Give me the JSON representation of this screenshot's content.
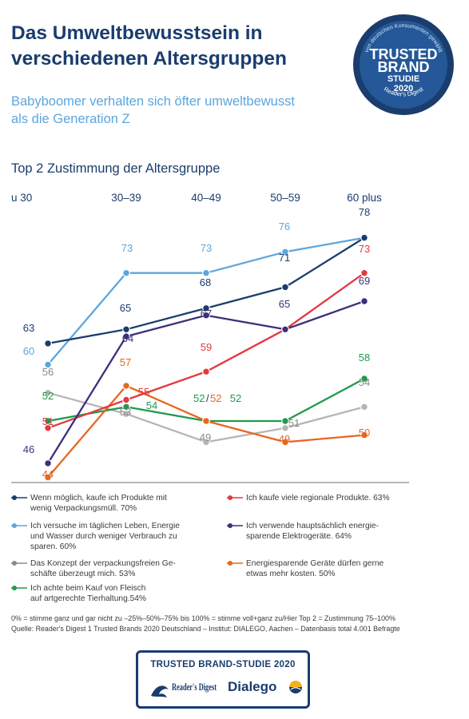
{
  "title_lines": [
    "Das Umweltbewusstsein in",
    "verschiedenen Altersgruppen"
  ],
  "subtitle_lines": [
    "Babyboomer verhalten sich öfter umweltbewusst",
    "als die Generation Z"
  ],
  "section_title": "Top 2 Zustimmung der Altersgruppe",
  "badge": {
    "arc_text": "von deutschen Konsumenten gewählt",
    "line1": "TRUSTED",
    "line2": "BRAND",
    "line3": "STUDIE",
    "year": "2020",
    "bottom": "Reader's Digest",
    "colors": {
      "navy": "#1a3d6d",
      "blue": "#2f6aa8",
      "light": "#5ca6dc"
    }
  },
  "chart_data": {
    "type": "line",
    "categories": [
      "u 30",
      "30–39",
      "40–49",
      "50–59",
      "60 plus"
    ],
    "ylim": [
      42,
      80
    ],
    "grid": false,
    "series": [
      {
        "name": "Wenn möglich, kaufe ich Produkte mit wenig Verpackungsmüll. 70%",
        "color": "#1a3d6d",
        "values": [
          63,
          65,
          68,
          71,
          78
        ]
      },
      {
        "name": "Ich versuche im täglichen Leben, Energie und Wasser durch weniger Verbrauch zu sparen. 60%",
        "color": "#5ca6dc",
        "values": [
          60,
          73,
          73,
          76,
          78
        ]
      },
      {
        "name": "Das Konzept der verpackungsfreien Geschäfte überzeugt mich. 53%",
        "color": "#b5b5b5",
        "values": [
          56,
          53,
          49,
          51,
          54
        ]
      },
      {
        "name": "Ich achte beim Kauf von Fleisch auf artgerechte Tierhaltung. 54%",
        "color": "#1f9a4e",
        "values": [
          52,
          54,
          52,
          52,
          58
        ]
      },
      {
        "name": "Ich kaufe viele regionale Produkte. 63%",
        "color": "#e23a3e",
        "values": [
          51,
          55,
          59,
          65,
          73
        ]
      },
      {
        "name": "Ich verwende hauptsächlich energiesparende Elektrogeräte. 64%",
        "color": "#3d2f7c",
        "values": [
          46,
          64,
          67,
          65,
          69
        ]
      },
      {
        "name": "Energiesparende Geräte dürfen gerne etwas mehr kosten. 50%",
        "color": "#e8661f",
        "values": [
          44,
          57,
          52,
          49,
          50
        ]
      }
    ],
    "labels": [
      {
        "text": "63",
        "color": "#1a3d6d"
      },
      {
        "text": "65",
        "color": "#1a3d6d"
      },
      {
        "text": "68",
        "color": "#1a3d6d"
      },
      {
        "text": "71",
        "color": "#1a3d6d"
      },
      {
        "text": "78",
        "color": "#1a3d6d"
      },
      {
        "text": "60",
        "color": "#5ca6dc"
      },
      {
        "text": "73",
        "color": "#5ca6dc"
      },
      {
        "text": "73",
        "color": "#5ca6dc"
      },
      {
        "text": "76",
        "color": "#5ca6dc"
      },
      {
        "text": "56",
        "color": "#8a8a8a"
      },
      {
        "text": "53",
        "color": "#8a8a8a"
      },
      {
        "text": "49",
        "color": "#8a8a8a"
      },
      {
        "text": "51",
        "color": "#8a8a8a"
      },
      {
        "text": "54",
        "color": "#8a8a8a"
      },
      {
        "text": "52",
        "color": "#1f9a4e"
      },
      {
        "text": "54",
        "color": "#1f9a4e"
      },
      {
        "text": "52",
        "color": "#1f9a4e"
      },
      {
        "text": "58",
        "color": "#1f9a4e"
      },
      {
        "text": "51",
        "color": "#e23a3e"
      },
      {
        "text": "55",
        "color": "#e23a3e"
      },
      {
        "text": "59",
        "color": "#e23a3e"
      },
      {
        "text": "73",
        "color": "#e23a3e"
      },
      {
        "text": "46",
        "color": "#3d2f7c"
      },
      {
        "text": "64",
        "color": "#3d2f7c"
      },
      {
        "text": "67",
        "color": "#3d2f7c"
      },
      {
        "text": "65",
        "color": "#3d2f7c"
      },
      {
        "text": "69",
        "color": "#3d2f7c"
      },
      {
        "text": "44",
        "color": "#e8661f"
      },
      {
        "text": "57",
        "color": "#e8661f"
      },
      {
        "text": "49",
        "color": "#e8661f"
      },
      {
        "text": "50",
        "color": "#e8661f"
      }
    ],
    "combined_label": {
      "green": "52",
      "slash": "/",
      "orange": "52"
    }
  },
  "legend": [
    {
      "color": "#1a3d6d",
      "lines": [
        "Wenn möglich, kaufe ich Produkte mit",
        "wenig Verpackungsmüll. 70%"
      ]
    },
    {
      "color": "#5ca6dc",
      "lines": [
        "Ich versuche im täglichen Leben, Energie",
        "und Wasser durch weniger Verbrauch zu",
        "sparen. 60%"
      ]
    },
    {
      "color": "#8a8a8a",
      "lines": [
        "Das Konzept der verpackungsfreien Ge-",
        "schäfte überzeugt mich. 53%"
      ]
    },
    {
      "color": "#1f9a4e",
      "lines": [
        "Ich achte beim Kauf von Fleisch",
        "auf artgerechte Tierhaltung.54%"
      ]
    },
    {
      "color": "#e23a3e",
      "lines": [
        "Ich kaufe viele regionale Produkte. 63%"
      ]
    },
    {
      "color": "#3d2f7c",
      "lines": [
        "Ich verwende hauptsächlich energie-",
        "sparende Elektrogeräte. 64%"
      ]
    },
    {
      "color": "#e8661f",
      "lines": [
        "Energiesparende Geräte dürfen gerne",
        "etwas mehr kosten. 50%"
      ]
    }
  ],
  "notes": [
    "0% = stimme ganz und gar nicht zu –25%–50%–75% bis 100% = stimme voll+ganz zu/Hier Top 2 = Zustimmung 75–100%",
    "Quelle: Reader's Digest 1 Trusted Brands 2020 Deutschland – Institut: DIALEGO, Aachen – Datenbasis total 4.001 Befragte"
  ],
  "footer": {
    "title": "TRUSTED BRAND-STUDIE 2020",
    "readers_digest": "Reader's Digest",
    "dialego": "Dialego"
  }
}
